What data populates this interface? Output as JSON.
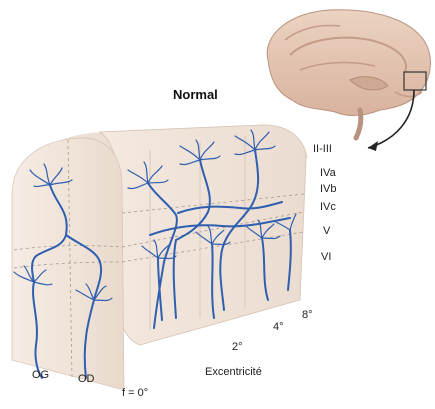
{
  "title": "Normal",
  "layers": [
    "II-III",
    "IVa",
    "IVb",
    "IVc",
    "V",
    "VI"
  ],
  "eyes": {
    "left": "OG",
    "right": "OD"
  },
  "eccentricity": {
    "axis_label": "Excentricité",
    "ticks": [
      "f = 0°",
      "2°",
      "4°",
      "8°"
    ]
  },
  "colors": {
    "neuron": "#2f5fb0",
    "block_face": "#f3e7dc",
    "block_top": "#ece0d6",
    "brain": "#e3c6b5"
  }
}
